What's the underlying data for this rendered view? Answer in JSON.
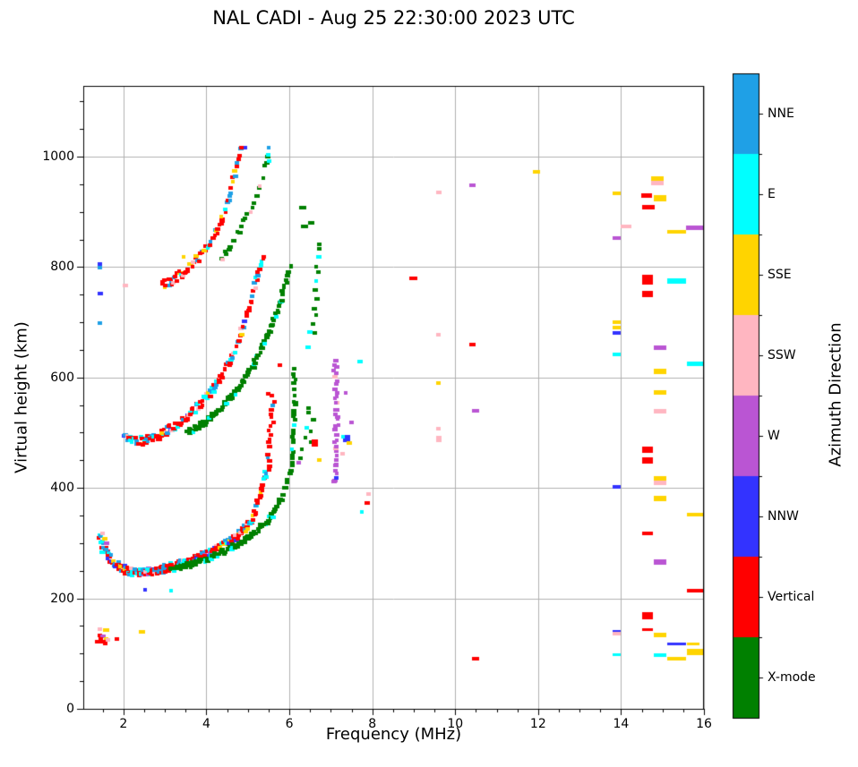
{
  "chart_data": {
    "type": "scatter",
    "title": "NAL CADI - Aug 25 22:30:00 2023 UTC",
    "xlabel": "Frequency (MHz)",
    "ylabel": "Virtual height (km)",
    "xlim": [
      1.03,
      16.0
    ],
    "ylim": [
      0,
      1128
    ],
    "xticks": [
      2,
      4,
      6,
      8,
      10,
      12,
      14,
      16
    ],
    "yticks": [
      0,
      200,
      400,
      600,
      800,
      1000
    ],
    "x_minor_step": 0.5,
    "y_minor_step": 50,
    "grid": true,
    "grid_color": "#b0b0b0",
    "colorbar": {
      "label": "Azimuth Direction",
      "categories": [
        {
          "label": "NNE",
          "color": "#1FA0E6"
        },
        {
          "label": "E",
          "color": "#00FFFF"
        },
        {
          "label": "SSE",
          "color": "#FFD400"
        },
        {
          "label": "SSW",
          "color": "#FFB6C1"
        },
        {
          "label": "W",
          "color": "#BA55D3"
        },
        {
          "label": "NNW",
          "color": "#3333FF"
        },
        {
          "label": "Vertical",
          "color": "#FF0000"
        },
        {
          "label": "X-mode",
          "color": "#008000"
        }
      ]
    },
    "traces": [
      {
        "name": "F-trace-1hop-O",
        "colors": [
          [
            "Vertical",
            46
          ],
          [
            "NNE",
            20
          ],
          [
            "E",
            17
          ],
          [
            "SSW",
            6
          ],
          [
            "SSE",
            5
          ],
          [
            "W",
            3
          ],
          [
            "NNW",
            3
          ]
        ],
        "path": [
          [
            1.42,
            310
          ],
          [
            1.55,
            290
          ],
          [
            1.75,
            266
          ],
          [
            2.0,
            252
          ],
          [
            2.3,
            247
          ],
          [
            2.7,
            249
          ],
          [
            3.1,
            256
          ],
          [
            3.5,
            265
          ],
          [
            3.9,
            276
          ],
          [
            4.3,
            291
          ],
          [
            4.7,
            310
          ],
          [
            5.0,
            332
          ],
          [
            5.2,
            362
          ],
          [
            5.35,
            405
          ],
          [
            5.45,
            432
          ]
        ],
        "step": 0.045,
        "per": 3,
        "jit": 7
      },
      {
        "name": "F-trace-1hop-O-top",
        "mode": "v",
        "colors": [
          [
            "Vertical",
            80
          ],
          [
            "NNE",
            10
          ],
          [
            "E",
            10
          ]
        ],
        "path": [
          [
            5.48,
            432
          ],
          [
            5.53,
            480
          ],
          [
            5.58,
            525
          ],
          [
            5.62,
            568
          ]
        ],
        "step": 8,
        "per": 1,
        "jit": 0.05
      },
      {
        "name": "F-trace-1hop-X",
        "colors": [
          [
            "X-mode",
            90
          ],
          [
            "E",
            10
          ]
        ],
        "path": [
          [
            3.15,
            252
          ],
          [
            3.6,
            260
          ],
          [
            4.0,
            270
          ],
          [
            4.4,
            283
          ],
          [
            4.8,
            300
          ],
          [
            5.2,
            322
          ],
          [
            5.6,
            352
          ],
          [
            5.85,
            390
          ],
          [
            6.0,
            422
          ]
        ],
        "step": 0.05,
        "per": 2,
        "jit": 5
      },
      {
        "name": "F-trace-1hop-X-top",
        "mode": "v",
        "colors": [
          [
            "X-mode",
            92
          ],
          [
            "E",
            8
          ]
        ],
        "path": [
          [
            6.05,
            430
          ],
          [
            6.1,
            500
          ],
          [
            6.13,
            560
          ],
          [
            6.12,
            618
          ]
        ],
        "step": 7,
        "per": 1,
        "jit": 0.03
      },
      {
        "name": "F-trace-2hop-O",
        "colors": [
          [
            "Vertical",
            52
          ],
          [
            "E",
            19
          ],
          [
            "NNE",
            16
          ],
          [
            "SSW",
            8
          ],
          [
            "SSE",
            3
          ],
          [
            "NNW",
            2
          ]
        ],
        "path": [
          [
            2.05,
            490
          ],
          [
            2.35,
            485
          ],
          [
            2.7,
            490
          ],
          [
            3.1,
            505
          ],
          [
            3.5,
            528
          ],
          [
            3.9,
            556
          ],
          [
            4.3,
            592
          ],
          [
            4.65,
            640
          ],
          [
            4.9,
            695
          ],
          [
            5.1,
            750
          ],
          [
            5.3,
            800
          ],
          [
            5.4,
            825
          ]
        ],
        "step": 0.045,
        "per": 2,
        "jit": 8
      },
      {
        "name": "F-trace-2hop-X",
        "colors": [
          [
            "X-mode",
            90
          ],
          [
            "E",
            10
          ]
        ],
        "path": [
          [
            3.55,
            500
          ],
          [
            4.0,
            520
          ],
          [
            4.4,
            548
          ],
          [
            4.8,
            582
          ],
          [
            5.15,
            625
          ],
          [
            5.5,
            680
          ],
          [
            5.75,
            730
          ],
          [
            5.95,
            780
          ],
          [
            6.05,
            806
          ]
        ],
        "step": 0.045,
        "per": 2,
        "jit": 5
      },
      {
        "name": "F-trace-3hop-O",
        "colors": [
          [
            "Vertical",
            58
          ],
          [
            "NNE",
            18
          ],
          [
            "E",
            12
          ],
          [
            "SSE",
            6
          ],
          [
            "SSW",
            6
          ]
        ],
        "path": [
          [
            2.95,
            768
          ],
          [
            3.25,
            780
          ],
          [
            3.55,
            798
          ],
          [
            3.85,
            822
          ],
          [
            4.15,
            852
          ],
          [
            4.4,
            890
          ],
          [
            4.6,
            940
          ],
          [
            4.75,
            985
          ],
          [
            4.85,
            1012
          ]
        ],
        "step": 0.05,
        "per": 2,
        "jit": 8
      },
      {
        "name": "F-trace-3hop-X",
        "colors": [
          [
            "X-mode",
            84
          ],
          [
            "E",
            11
          ],
          [
            "SSW",
            5
          ]
        ],
        "path": [
          [
            4.35,
            812
          ],
          [
            4.6,
            838
          ],
          [
            4.85,
            872
          ],
          [
            5.1,
            912
          ],
          [
            5.3,
            952
          ],
          [
            5.45,
            992
          ],
          [
            5.52,
            1010
          ]
        ],
        "step": 0.05,
        "per": 1,
        "jit": 6
      },
      {
        "name": "spread-W-column",
        "mode": "v",
        "colors": [
          [
            "W",
            92
          ],
          [
            "NNW",
            4
          ],
          [
            "SSW",
            4
          ]
        ],
        "path": [
          [
            7.1,
            410
          ],
          [
            7.13,
            480
          ],
          [
            7.15,
            545
          ],
          [
            7.12,
            600
          ],
          [
            7.1,
            635
          ]
        ],
        "step": 6,
        "per": 1,
        "jit": 0.045
      },
      {
        "name": "spread-green-high-column",
        "mode": "v",
        "colors": [
          [
            "X-mode",
            85
          ],
          [
            "E",
            15
          ]
        ],
        "path": [
          [
            6.62,
            685
          ],
          [
            6.66,
            760
          ],
          [
            6.68,
            845
          ]
        ],
        "step": 14,
        "per": 1,
        "jit": 0.06
      },
      {
        "name": "spread-green-mid",
        "mode": "v",
        "colors": [
          [
            "X-mode",
            80
          ],
          [
            "E",
            10
          ],
          [
            "W",
            10
          ]
        ],
        "path": [
          [
            6.3,
            445
          ],
          [
            6.45,
            500
          ],
          [
            6.6,
            555
          ]
        ],
        "step": 12,
        "per": 1,
        "jit": 0.12
      }
    ],
    "points": [
      [
        1.44,
        144,
        "SSW"
      ],
      [
        1.58,
        142,
        "SSE",
        0.16
      ],
      [
        1.42,
        133,
        "Vertical"
      ],
      [
        1.5,
        131,
        "W"
      ],
      [
        1.58,
        127,
        "SSE"
      ],
      [
        1.46,
        127,
        "Vertical"
      ],
      [
        1.42,
        122,
        "Vertical",
        0.2
      ],
      [
        1.52,
        121,
        "Vertical"
      ],
      [
        1.62,
        124,
        "SSW"
      ],
      [
        1.85,
        127,
        "Vertical"
      ],
      [
        2.44,
        140,
        "SSE",
        0.16
      ],
      [
        1.56,
        118,
        "Vertical"
      ],
      [
        1.44,
        806,
        "NNW"
      ],
      [
        1.44,
        799,
        "NNE"
      ],
      [
        1.44,
        752,
        "NNW"
      ],
      [
        1.44,
        698,
        "NNE"
      ],
      [
        2.04,
        766,
        "SSW"
      ],
      [
        1.5,
        318,
        "SSW"
      ],
      [
        1.55,
        308,
        "SSE"
      ],
      [
        1.6,
        300,
        "W"
      ],
      [
        1.5,
        292,
        "NNE"
      ],
      [
        1.47,
        283,
        "E"
      ],
      [
        1.62,
        272,
        "NNW"
      ],
      [
        2.52,
        216,
        "NNW"
      ],
      [
        3.15,
        214,
        "E"
      ],
      [
        3.45,
        819,
        "SSE"
      ],
      [
        4.35,
        892,
        "SSE"
      ],
      [
        4.85,
        1016,
        "Vertical",
        0.14
      ],
      [
        4.95,
        1016,
        "NNW"
      ],
      [
        5.5,
        1016,
        "NNE"
      ],
      [
        5.5,
        1004,
        "E"
      ],
      [
        5.52,
        992,
        "E"
      ],
      [
        6.33,
        908,
        "X-mode",
        0.18
      ],
      [
        6.38,
        874,
        "X-mode",
        0.18
      ],
      [
        6.52,
        880,
        "X-mode",
        0.15
      ],
      [
        5.78,
        623,
        "Vertical"
      ],
      [
        5.5,
        570,
        "Vertical"
      ],
      [
        5.57,
        542,
        "Vertical"
      ],
      [
        6.62,
        481,
        "Vertical",
        0.16,
        8
      ],
      [
        6.73,
        451,
        "SSE"
      ],
      [
        7.38,
        490,
        "NNW",
        0.18,
        8
      ],
      [
        7.3,
        492,
        "E"
      ],
      [
        7.45,
        481,
        "SSE"
      ],
      [
        7.35,
        572,
        "W"
      ],
      [
        7.5,
        518,
        "W"
      ],
      [
        7.28,
        462,
        "SSW"
      ],
      [
        7.9,
        389,
        "SSW"
      ],
      [
        7.88,
        372,
        "Vertical"
      ],
      [
        7.75,
        357,
        "E"
      ],
      [
        7.7,
        629,
        "E",
        0.14
      ],
      [
        6.5,
        682,
        "E",
        0.14
      ],
      [
        6.45,
        655,
        "E"
      ],
      [
        9.0,
        780,
        "Vertical",
        0.2
      ],
      [
        9.6,
        935,
        "SSW",
        0.12
      ],
      [
        10.42,
        948,
        "W",
        0.16
      ],
      [
        11.97,
        972,
        "SSE",
        0.18
      ],
      [
        9.6,
        678,
        "SSW",
        0.1
      ],
      [
        10.42,
        660,
        "Vertical",
        0.16
      ],
      [
        9.6,
        590,
        "SSE",
        0.1
      ],
      [
        10.5,
        539,
        "W",
        0.18
      ],
      [
        9.6,
        507,
        "SSW",
        0.1
      ],
      [
        9.6,
        488,
        "SSW",
        0.12,
        7
      ],
      [
        10.5,
        91,
        "Vertical",
        0.18
      ],
      [
        13.9,
        934,
        "SSE",
        0.2
      ],
      [
        14.88,
        961,
        "SSE",
        0.3,
        5
      ],
      [
        14.88,
        952,
        "SSW",
        0.3,
        5
      ],
      [
        14.63,
        929,
        "Vertical",
        0.27,
        5
      ],
      [
        14.93,
        924,
        "SSE",
        0.3,
        7
      ],
      [
        14.65,
        908,
        "Vertical",
        0.3,
        5
      ],
      [
        14.12,
        874,
        "SSW",
        0.25,
        4
      ],
      [
        15.78,
        871,
        "W",
        0.44,
        5
      ],
      [
        15.35,
        864,
        "SSE",
        0.45,
        4
      ],
      [
        13.9,
        853,
        "W",
        0.2,
        4
      ],
      [
        14.65,
        777,
        "Vertical",
        0.27,
        11
      ],
      [
        15.35,
        775,
        "E",
        0.45,
        6
      ],
      [
        14.65,
        752,
        "Vertical",
        0.27,
        7
      ],
      [
        13.9,
        700,
        "SSE",
        0.2,
        4
      ],
      [
        13.9,
        690,
        "SSE",
        0.2,
        4
      ],
      [
        13.9,
        680,
        "NNW",
        0.2,
        4
      ],
      [
        14.93,
        654,
        "W",
        0.3,
        5
      ],
      [
        13.9,
        641,
        "E",
        0.2,
        4
      ],
      [
        15.8,
        625,
        "E",
        0.4,
        5
      ],
      [
        14.93,
        611,
        "SSE",
        0.3,
        6
      ],
      [
        14.93,
        573,
        "SSE",
        0.3,
        5
      ],
      [
        14.93,
        539,
        "SSW",
        0.3,
        5
      ],
      [
        14.65,
        470,
        "Vertical",
        0.27,
        7
      ],
      [
        14.65,
        450,
        "Vertical",
        0.27,
        7
      ],
      [
        14.93,
        417,
        "SSE",
        0.3,
        5
      ],
      [
        14.93,
        410,
        "SSW",
        0.3,
        5
      ],
      [
        13.9,
        402,
        "NNW",
        0.2,
        4
      ],
      [
        14.93,
        381,
        "SSE",
        0.3,
        6
      ],
      [
        15.8,
        352,
        "SSE",
        0.4,
        4
      ],
      [
        14.65,
        318,
        "Vertical",
        0.27,
        4
      ],
      [
        14.93,
        265,
        "W",
        0.3,
        6
      ],
      [
        15.8,
        214,
        "Vertical",
        0.4,
        4
      ],
      [
        14.65,
        168,
        "Vertical",
        0.27,
        8
      ],
      [
        13.9,
        140,
        "NNW",
        0.2,
        3
      ],
      [
        13.9,
        136,
        "SSW",
        0.2,
        4
      ],
      [
        14.65,
        143,
        "Vertical",
        0.27,
        3
      ],
      [
        14.93,
        133,
        "SSE",
        0.3,
        5
      ],
      [
        15.35,
        118,
        "NNW",
        0.45,
        3
      ],
      [
        15.75,
        118,
        "SSE",
        0.3,
        3
      ],
      [
        13.9,
        98,
        "E",
        0.2,
        3
      ],
      [
        14.93,
        98,
        "E",
        0.3,
        4
      ],
      [
        15.8,
        103,
        "SSE",
        0.4,
        7
      ],
      [
        15.35,
        91,
        "SSE",
        0.45,
        4
      ]
    ]
  }
}
